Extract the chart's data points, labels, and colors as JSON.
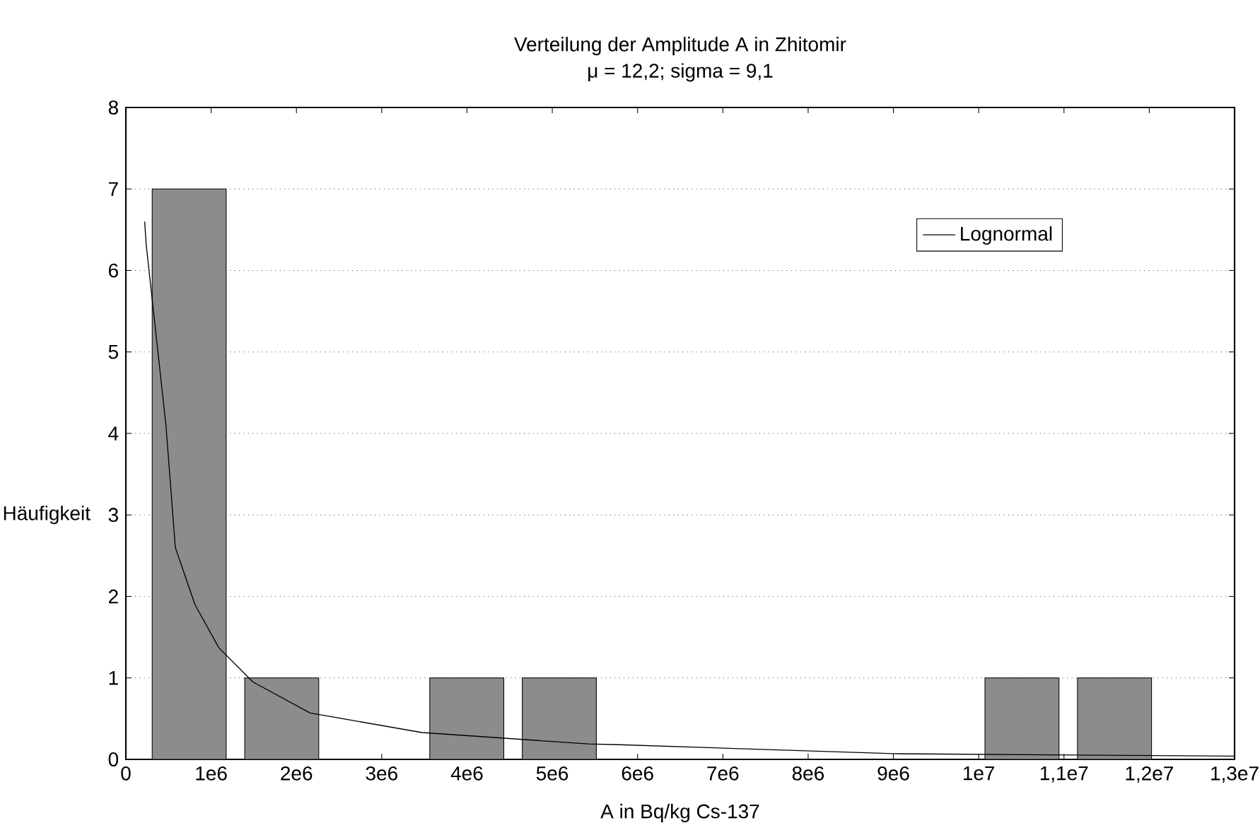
{
  "chart_data": {
    "type": "histogram",
    "title": "Verteilung der Amplitude A in Zhitomir",
    "subtitle": "μ = 12,2; sigma = 9,1",
    "xlabel": "A in Bq/kg Cs-137",
    "ylabel": "Häufigkeit",
    "bins": [
      200000,
      1285000,
      2370000,
      3455000,
      4540000,
      5625000,
      6710000,
      7795000,
      8880000,
      9965000,
      11050000,
      12135000
    ],
    "values": [
      7,
      1,
      0,
      1,
      1,
      0,
      0,
      0,
      0,
      1,
      1
    ],
    "color": "#8c8c8c",
    "series": [
      {
        "type": "line",
        "name": "Lognormal",
        "color": "#000000",
        "x": [
          220000,
          240000,
          470000,
          580000,
          810000,
          1090000,
          1490000,
          2160000,
          3470000,
          5420000,
          5790000,
          9000000,
          13000000
        ],
        "values": [
          6.6,
          6.3,
          4.1,
          2.6,
          1.9,
          1.37,
          0.95,
          0.57,
          0.33,
          0.19,
          0.18,
          0.07,
          0.04
        ]
      }
    ],
    "xlim": [
      0,
      13000000
    ],
    "ylim": [
      0,
      8
    ],
    "xticks": [
      0,
      {
        "value": 1000000,
        "label": "1e6"
      },
      {
        "value": 2000000,
        "label": "2e6"
      },
      {
        "value": 3000000,
        "label": "3e6"
      },
      {
        "value": 4000000,
        "label": "4e6"
      },
      {
        "value": 5000000,
        "label": "5e6"
      },
      {
        "value": 6000000,
        "label": "6e6"
      },
      {
        "value": 7000000,
        "label": "7e6"
      },
      {
        "value": 8000000,
        "label": "8e6"
      },
      {
        "value": 9000000,
        "label": "9e6"
      },
      {
        "value": 10000000,
        "label": "1e7"
      },
      {
        "value": 11000000,
        "label": "1,1e7"
      },
      {
        "value": 12000000,
        "label": "1,2e7"
      },
      {
        "value": 13000000,
        "label": "1,3e7"
      }
    ],
    "yticks": [
      0,
      1,
      2,
      3,
      4,
      5,
      6,
      7,
      8
    ],
    "grid": "y",
    "legend": "top right"
  }
}
